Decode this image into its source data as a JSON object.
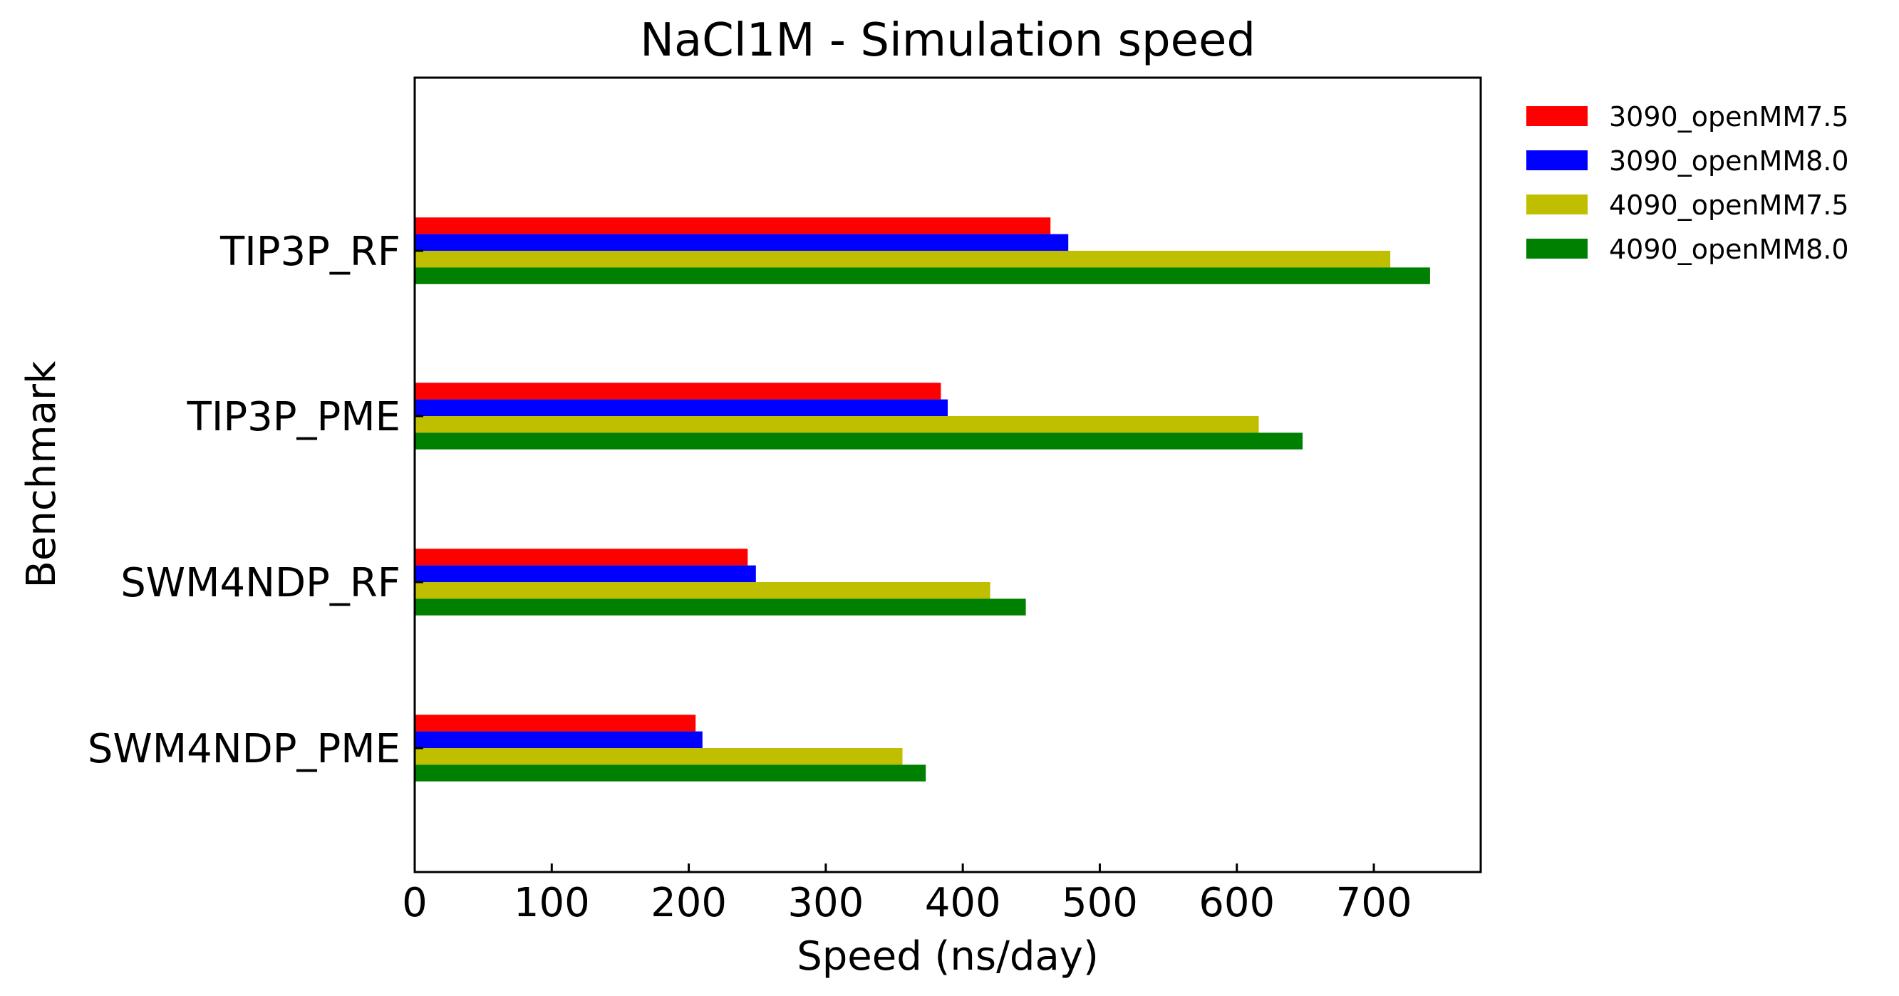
{
  "chart_data": {
    "type": "bar",
    "orientation": "horizontal",
    "title": "NaCl1M - Simulation speed",
    "xlabel": "Speed (ns/day)",
    "ylabel": "Benchmark",
    "categories": [
      "TIP3P_RF",
      "TIP3P_PME",
      "SWM4NDP_RF",
      "SWM4NDP_PME"
    ],
    "series": [
      {
        "name": "3090_openMM7.5",
        "color": "#ff0000",
        "values": [
          464,
          384,
          243,
          205
        ]
      },
      {
        "name": "3090_openMM8.0",
        "color": "#0000ff",
        "values": [
          477,
          389,
          249,
          210
        ]
      },
      {
        "name": "4090_openMM7.5",
        "color": "#bfbf00",
        "values": [
          712,
          616,
          420,
          356
        ]
      },
      {
        "name": "4090_openMM8.0",
        "color": "#008000",
        "values": [
          741,
          648,
          446,
          373
        ]
      }
    ],
    "xlim": [
      0,
      778
    ],
    "xticks": [
      0,
      100,
      200,
      300,
      400,
      500,
      600,
      700
    ],
    "grid": false,
    "legend_position": "outside-top-right"
  }
}
